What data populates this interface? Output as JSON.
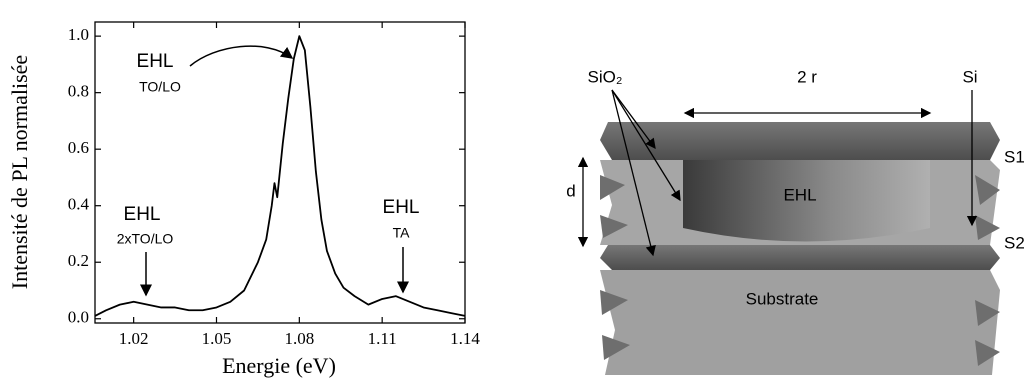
{
  "chart_data": {
    "type": "line",
    "x": [
      1.006,
      1.01,
      1.015,
      1.02,
      1.025,
      1.03,
      1.035,
      1.04,
      1.045,
      1.05,
      1.055,
      1.06,
      1.065,
      1.068,
      1.07,
      1.071,
      1.072,
      1.074,
      1.076,
      1.078,
      1.08,
      1.082,
      1.084,
      1.086,
      1.088,
      1.09,
      1.093,
      1.096,
      1.1,
      1.105,
      1.11,
      1.115,
      1.12,
      1.125,
      1.13,
      1.135,
      1.14
    ],
    "values": [
      0.01,
      0.03,
      0.05,
      0.06,
      0.05,
      0.04,
      0.04,
      0.03,
      0.03,
      0.04,
      0.06,
      0.1,
      0.2,
      0.28,
      0.4,
      0.48,
      0.43,
      0.62,
      0.78,
      0.92,
      1.0,
      0.95,
      0.75,
      0.52,
      0.35,
      0.24,
      0.16,
      0.11,
      0.08,
      0.05,
      0.07,
      0.08,
      0.06,
      0.04,
      0.03,
      0.02,
      0.01
    ],
    "color": "#000000",
    "xlabel": "Energie (eV)",
    "ylabel": "Intensité de PL normalisée",
    "xlim": [
      1.006,
      1.14
    ],
    "xticks": [
      1.02,
      1.05,
      1.08,
      1.11,
      1.14
    ],
    "ylim": [
      -0.015,
      1.05
    ],
    "yticks": [
      {
        "value": 0,
        "label": "0.0"
      },
      {
        "value": 0.2,
        "label": "0.2"
      },
      {
        "value": 0.4,
        "label": "0.4"
      },
      {
        "value": 0.6,
        "label": "0.6"
      },
      {
        "value": 0.8,
        "label": "0.8"
      },
      {
        "value": 1,
        "label": "1.0"
      }
    ],
    "grid": false,
    "annotations": [
      {
        "text": "EHL",
        "subtext": "TO/LO"
      },
      {
        "text": "EHL",
        "subtext": "2xTO/LO"
      },
      {
        "text": "EHL",
        "subtext": "TA"
      }
    ]
  },
  "diagram": {
    "labels": {
      "sio2": "SiO₂",
      "radius": "2 r",
      "si": "Si",
      "s1": "S1",
      "s2": "S2",
      "d": "d",
      "ehl": "EHL",
      "substrate": "Substrate"
    }
  }
}
